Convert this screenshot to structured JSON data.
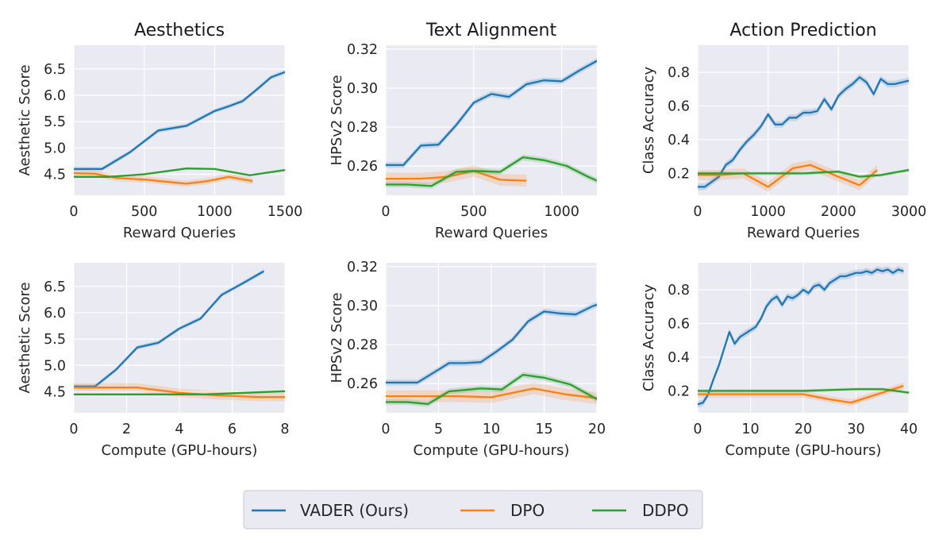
{
  "colors": {
    "VADER": "#1f77b4",
    "DPO": "#ff7f0e",
    "DDPO": "#2ca02c",
    "background": "#eaeaf2"
  },
  "legend": {
    "placement": "bottom-center",
    "entries": [
      {
        "key": "VADER",
        "label": "VADER (Ours)"
      },
      {
        "key": "DPO",
        "label": "DPO"
      },
      {
        "key": "DDPO",
        "label": "DDPO"
      }
    ]
  },
  "chart_data": [
    {
      "type": "line",
      "title": "Aesthetics",
      "xlabel": "Reward Queries",
      "ylabel": "Aesthetic Score",
      "xlim": [
        0,
        1500
      ],
      "ylim": [
        4.1,
        6.95
      ],
      "xticks": [
        0,
        500,
        1000,
        1500
      ],
      "yticks": [
        4.5,
        5.0,
        5.5,
        6.0,
        6.5
      ],
      "xtick_labels": [
        "0",
        "500",
        "1000",
        "1500"
      ],
      "ytick_labels": [
        "4.5",
        "5.0",
        "5.5",
        "6.0",
        "6.5"
      ],
      "grid": true,
      "series": [
        {
          "name": "VADER (Ours)",
          "key": "VADER",
          "band": 0.04,
          "x": [
            0,
            200,
            400,
            600,
            800,
            1000,
            1100,
            1200,
            1300,
            1400,
            1500
          ],
          "y": [
            4.6,
            4.6,
            4.92,
            5.33,
            5.42,
            5.7,
            5.79,
            5.89,
            6.11,
            6.34,
            6.44
          ]
        },
        {
          "name": "DPO",
          "key": "DPO",
          "band": 0.06,
          "x": [
            0,
            150,
            300,
            500,
            800,
            950,
            1100,
            1270
          ],
          "y": [
            4.52,
            4.51,
            4.43,
            4.4,
            4.32,
            4.37,
            4.45,
            4.37
          ]
        },
        {
          "name": "DDPO",
          "key": "DDPO",
          "band": 0.02,
          "x": [
            0,
            250,
            500,
            800,
            1000,
            1250,
            1500
          ],
          "y": [
            4.45,
            4.45,
            4.5,
            4.61,
            4.6,
            4.48,
            4.58
          ]
        }
      ]
    },
    {
      "type": "line",
      "title": "Text Alignment",
      "xlabel": "Reward Queries",
      "ylabel": "HPSv2 Score",
      "xlim": [
        0,
        1200
      ],
      "ylim": [
        0.245,
        0.322
      ],
      "xticks": [
        0,
        500,
        1000
      ],
      "yticks": [
        0.26,
        0.28,
        0.3,
        0.32
      ],
      "xtick_labels": [
        "0",
        "500",
        "1000"
      ],
      "ytick_labels": [
        "0.26",
        "0.28",
        "0.30",
        "0.32"
      ],
      "grid": true,
      "series": [
        {
          "name": "VADER (Ours)",
          "key": "VADER",
          "band": 0.0015,
          "x": [
            0,
            100,
            200,
            300,
            400,
            500,
            600,
            700,
            800,
            900,
            1000,
            1100,
            1200
          ],
          "y": [
            0.2605,
            0.2605,
            0.2705,
            0.271,
            0.281,
            0.2925,
            0.297,
            0.2955,
            0.302,
            0.304,
            0.3035,
            0.309,
            0.314
          ]
        },
        {
          "name": "DPO",
          "key": "DPO",
          "band": 0.003,
          "x": [
            0,
            100,
            200,
            350,
            500,
            650,
            800
          ],
          "y": [
            0.2535,
            0.2535,
            0.2535,
            0.2545,
            0.2575,
            0.253,
            0.2525
          ]
        },
        {
          "name": "DDPO",
          "key": "DDPO",
          "band": 0.0015,
          "x": [
            0,
            120,
            260,
            400,
            500,
            650,
            780,
            900,
            1030,
            1150,
            1200
          ],
          "y": [
            0.2505,
            0.2505,
            0.2498,
            0.257,
            0.2575,
            0.257,
            0.2645,
            0.263,
            0.26,
            0.2545,
            0.2525
          ]
        }
      ]
    },
    {
      "type": "line",
      "title": "Action Prediction",
      "xlabel": "Reward Queries",
      "ylabel": "Class Accuracy",
      "xlim": [
        0,
        3000
      ],
      "ylim": [
        0.07,
        0.96
      ],
      "xticks": [
        0,
        1000,
        2000,
        3000
      ],
      "yticks": [
        0.2,
        0.4,
        0.6,
        0.8
      ],
      "xtick_labels": [
        "0",
        "1000",
        "2000",
        "3000"
      ],
      "ytick_labels": [
        "0.2",
        "0.4",
        "0.6",
        "0.8"
      ],
      "grid": true,
      "series": [
        {
          "name": "VADER (Ours)",
          "key": "VADER",
          "band": 0.02,
          "x": [
            0,
            100,
            200,
            300,
            400,
            500,
            600,
            700,
            800,
            900,
            1000,
            1100,
            1200,
            1300,
            1400,
            1500,
            1600,
            1700,
            1800,
            1900,
            2000,
            2100,
            2200,
            2300,
            2400,
            2500,
            2600,
            2700,
            2800,
            2900,
            3000
          ],
          "y": [
            0.12,
            0.12,
            0.15,
            0.18,
            0.25,
            0.28,
            0.34,
            0.39,
            0.43,
            0.48,
            0.55,
            0.49,
            0.49,
            0.53,
            0.53,
            0.56,
            0.56,
            0.57,
            0.64,
            0.58,
            0.66,
            0.7,
            0.73,
            0.77,
            0.74,
            0.67,
            0.76,
            0.73,
            0.73,
            0.74,
            0.75
          ]
        },
        {
          "name": "DPO",
          "key": "DPO",
          "band": 0.03,
          "x": [
            0,
            300,
            650,
            1000,
            1350,
            1600,
            2000,
            2300,
            2550
          ],
          "y": [
            0.19,
            0.19,
            0.2,
            0.12,
            0.23,
            0.25,
            0.18,
            0.13,
            0.22
          ]
        },
        {
          "name": "DDPO",
          "key": "DDPO",
          "band": 0.01,
          "x": [
            0,
            400,
            1000,
            1500,
            2000,
            2300,
            2600,
            3000
          ],
          "y": [
            0.2,
            0.2,
            0.2,
            0.2,
            0.21,
            0.18,
            0.19,
            0.22
          ]
        }
      ]
    },
    {
      "type": "line",
      "title": "",
      "xlabel": "Compute (GPU-hours)",
      "ylabel": "Aesthetic Score",
      "xlim": [
        0,
        8
      ],
      "ylim": [
        4.1,
        6.95
      ],
      "xticks": [
        0,
        2,
        4,
        6,
        8
      ],
      "yticks": [
        4.5,
        5.0,
        5.5,
        6.0,
        6.5
      ],
      "xtick_labels": [
        "0",
        "2",
        "4",
        "6",
        "8"
      ],
      "ytick_labels": [
        "4.5",
        "5.0",
        "5.5",
        "6.0",
        "6.5"
      ],
      "grid": true,
      "series": [
        {
          "name": "VADER (Ours)",
          "key": "VADER",
          "band": 0.04,
          "x": [
            0,
            0.8,
            1.6,
            2.4,
            3.2,
            4.0,
            4.8,
            5.6,
            6.4,
            7.2
          ],
          "y": [
            4.6,
            4.6,
            4.92,
            5.34,
            5.43,
            5.7,
            5.89,
            6.34,
            6.56,
            6.79
          ]
        },
        {
          "name": "DPO",
          "key": "DPO",
          "band": 0.08,
          "x": [
            0,
            1,
            2.4,
            4,
            5.5,
            7,
            8
          ],
          "y": [
            4.58,
            4.58,
            4.58,
            4.48,
            4.43,
            4.4,
            4.4
          ]
        },
        {
          "name": "DDPO",
          "key": "DDPO",
          "band": 0.02,
          "x": [
            0,
            2,
            4,
            5,
            6,
            8
          ],
          "y": [
            4.45,
            4.45,
            4.45,
            4.45,
            4.47,
            4.51
          ]
        }
      ]
    },
    {
      "type": "line",
      "title": "",
      "xlabel": "Compute (GPU-hours)",
      "ylabel": "HPSv2 Score",
      "xlim": [
        0,
        20
      ],
      "ylim": [
        0.245,
        0.322
      ],
      "xticks": [
        0,
        5,
        10,
        15,
        20
      ],
      "yticks": [
        0.26,
        0.28,
        0.3,
        0.32
      ],
      "xtick_labels": [
        "0",
        "5",
        "10",
        "15",
        "20"
      ],
      "ytick_labels": [
        "0.26",
        "0.28",
        "0.30",
        "0.32"
      ],
      "grid": true,
      "series": [
        {
          "name": "VADER (Ours)",
          "key": "VADER",
          "band": 0.0015,
          "x": [
            0,
            1.5,
            3,
            4.5,
            6,
            7.5,
            9,
            10.5,
            12,
            13.5,
            15,
            16.5,
            18,
            19.5,
            20
          ],
          "y": [
            0.2605,
            0.2605,
            0.2605,
            0.2655,
            0.2705,
            0.2705,
            0.271,
            0.2765,
            0.2825,
            0.292,
            0.297,
            0.296,
            0.2955,
            0.2995,
            0.3005
          ]
        },
        {
          "name": "DPO",
          "key": "DPO",
          "band": 0.003,
          "x": [
            0,
            3,
            5,
            7,
            10,
            14,
            17,
            20
          ],
          "y": [
            0.2535,
            0.2535,
            0.2535,
            0.2535,
            0.253,
            0.2575,
            0.2545,
            0.2525
          ]
        },
        {
          "name": "DDPO",
          "key": "DDPO",
          "band": 0.0015,
          "x": [
            0,
            2,
            4,
            6,
            8,
            9,
            11,
            13,
            15,
            17.5,
            20
          ],
          "y": [
            0.2505,
            0.2505,
            0.2495,
            0.256,
            0.257,
            0.2575,
            0.257,
            0.2645,
            0.263,
            0.2595,
            0.252
          ]
        }
      ]
    },
    {
      "type": "line",
      "title": "",
      "xlabel": "Compute (GPU-hours)",
      "ylabel": "Class Accuracy",
      "xlim": [
        0,
        40
      ],
      "ylim": [
        0.07,
        0.96
      ],
      "xticks": [
        0,
        10,
        20,
        30,
        40
      ],
      "yticks": [
        0.2,
        0.4,
        0.6,
        0.8
      ],
      "xtick_labels": [
        "0",
        "10",
        "20",
        "30",
        "40"
      ],
      "ytick_labels": [
        "0.2",
        "0.4",
        "0.6",
        "0.8"
      ],
      "grid": true,
      "series": [
        {
          "name": "VADER (Ours)",
          "key": "VADER",
          "band": 0.02,
          "x": [
            0,
            1,
            2,
            3,
            4,
            5,
            6,
            7,
            8,
            9,
            10,
            11,
            12,
            13,
            14,
            15,
            16,
            17,
            18,
            19,
            20,
            21,
            22,
            23,
            24,
            25,
            26,
            27,
            28,
            29,
            30,
            31,
            32,
            33,
            34,
            35,
            36,
            37,
            38,
            39
          ],
          "y": [
            0.12,
            0.13,
            0.18,
            0.27,
            0.35,
            0.45,
            0.55,
            0.48,
            0.52,
            0.54,
            0.56,
            0.58,
            0.63,
            0.7,
            0.74,
            0.76,
            0.71,
            0.76,
            0.75,
            0.77,
            0.8,
            0.78,
            0.82,
            0.83,
            0.8,
            0.84,
            0.86,
            0.88,
            0.88,
            0.89,
            0.9,
            0.9,
            0.91,
            0.9,
            0.92,
            0.91,
            0.92,
            0.9,
            0.92,
            0.91
          ]
        },
        {
          "name": "DPO",
          "key": "DPO",
          "band": 0.02,
          "x": [
            0,
            5,
            10,
            15,
            20,
            25,
            29,
            33,
            36,
            39
          ],
          "y": [
            0.18,
            0.18,
            0.18,
            0.18,
            0.18,
            0.15,
            0.13,
            0.17,
            0.2,
            0.23
          ]
        },
        {
          "name": "DDPO",
          "key": "DDPO",
          "band": 0.01,
          "x": [
            0,
            10,
            20,
            30,
            35,
            40
          ],
          "y": [
            0.2,
            0.2,
            0.2,
            0.21,
            0.21,
            0.19
          ]
        }
      ]
    }
  ]
}
